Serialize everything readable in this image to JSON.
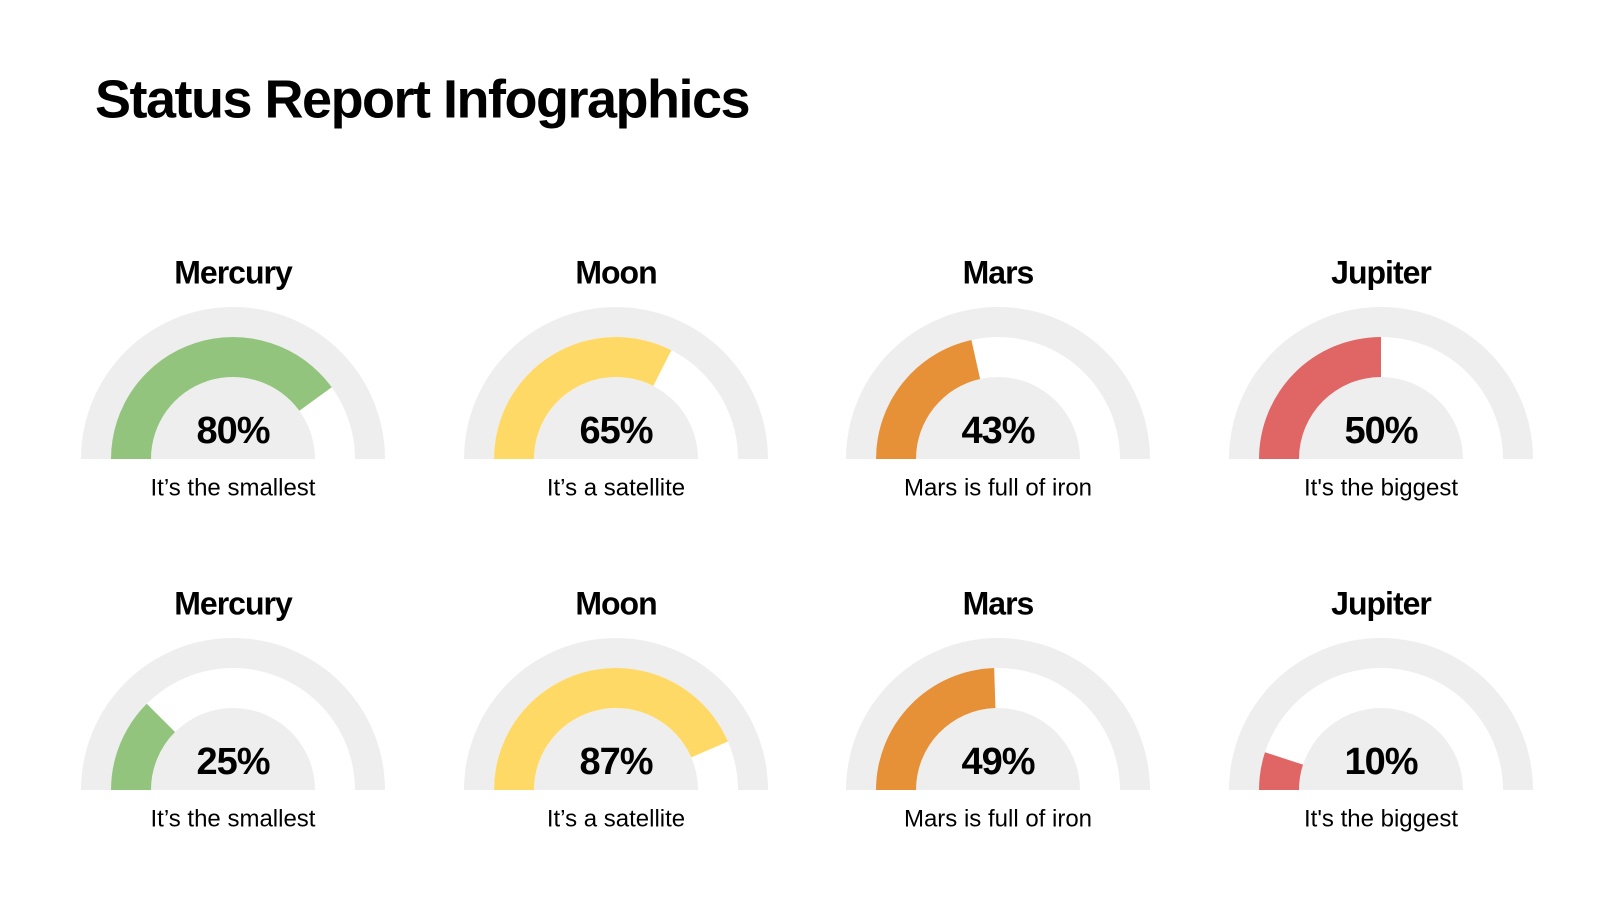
{
  "title": "Status Report Infographics",
  "chart_data": [
    {
      "type": "gauge",
      "title": "Mercury",
      "values": [
        80
      ],
      "value_labels": [
        "80%"
      ],
      "subtitle": "It’s the smallest",
      "color": "#93c47d",
      "ylim": [
        0,
        100
      ]
    },
    {
      "type": "gauge",
      "title": "Moon",
      "values": [
        65
      ],
      "value_labels": [
        "65%"
      ],
      "subtitle": "It’s a satellite",
      "color": "#ffd966",
      "ylim": [
        0,
        100
      ]
    },
    {
      "type": "gauge",
      "title": "Mars",
      "values": [
        43
      ],
      "value_labels": [
        "43%"
      ],
      "subtitle": "Mars is full of iron",
      "color": "#e69138",
      "ylim": [
        0,
        100
      ]
    },
    {
      "type": "gauge",
      "title": "Jupiter",
      "values": [
        50
      ],
      "value_labels": [
        "50%"
      ],
      "subtitle": "It's the biggest",
      "color": "#e06666",
      "ylim": [
        0,
        100
      ]
    },
    {
      "type": "gauge",
      "title": "Mercury",
      "values": [
        25
      ],
      "value_labels": [
        "25%"
      ],
      "subtitle": "It’s the smallest",
      "color": "#93c47d",
      "ylim": [
        0,
        100
      ]
    },
    {
      "type": "gauge",
      "title": "Moon",
      "values": [
        87
      ],
      "value_labels": [
        "87%"
      ],
      "subtitle": "It’s a satellite",
      "color": "#ffd966",
      "ylim": [
        0,
        100
      ]
    },
    {
      "type": "gauge",
      "title": "Mars",
      "values": [
        49
      ],
      "value_labels": [
        "49%"
      ],
      "subtitle": "Mars is full of iron",
      "color": "#e69138",
      "ylim": [
        0,
        100
      ]
    },
    {
      "type": "gauge",
      "title": "Jupiter",
      "values": [
        10
      ],
      "value_labels": [
        "10%"
      ],
      "subtitle": "It's the biggest",
      "color": "#e06666",
      "ylim": [
        0,
        100
      ]
    }
  ]
}
